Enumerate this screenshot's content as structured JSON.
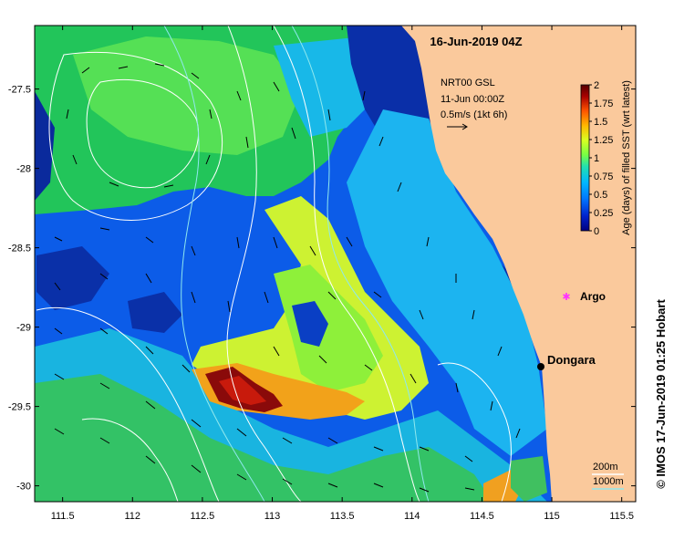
{
  "title": "16-Jun-2019 04Z",
  "credit": "© IMOS 17-Jun-2019 01:25 Hobart",
  "current_legend": {
    "line1": "NRT00 GSL",
    "line2": "11-Jun 00:00Z",
    "line3": "0.5m/s (1kt 6h)"
  },
  "colorbar": {
    "label": "Age (days) of filled SST (wrt latest)",
    "ticks": [
      "0",
      "0.25",
      "0.5",
      "0.75",
      "1",
      "1.25",
      "1.5",
      "1.75",
      "2"
    ],
    "range": [
      0,
      2
    ],
    "colors": [
      "#00007f",
      "#0022cc",
      "#0077ff",
      "#00b7ff",
      "#22e0b0",
      "#77ff44",
      "#d8ff22",
      "#ffb800",
      "#ff5500",
      "#aa0000",
      "#550000"
    ]
  },
  "contour_legend": {
    "label_200": "200m",
    "label_1000": "1000m",
    "color_200": "#ffffff",
    "color_1000": "#8fe8ee"
  },
  "places": {
    "argo": {
      "label": "Argo",
      "lon": 115.1,
      "lat": -28.9,
      "color": "#ff33ff"
    },
    "dongara": {
      "label": "Dongara",
      "lon": 114.93,
      "lat": -29.25
    }
  },
  "axes": {
    "x_ticks": [
      "111.5",
      "112",
      "112.5",
      "113",
      "113.5",
      "114",
      "114.5",
      "115",
      "115.5"
    ],
    "y_ticks": [
      "-27.5",
      "-28",
      "-28.5",
      "-29",
      "-29.5",
      "-30"
    ],
    "lon_range": [
      111.3,
      115.6
    ],
    "lat_range": [
      -30.1,
      -27.1
    ]
  },
  "colors": {
    "land": "#fac99c",
    "frame": "#000000"
  }
}
